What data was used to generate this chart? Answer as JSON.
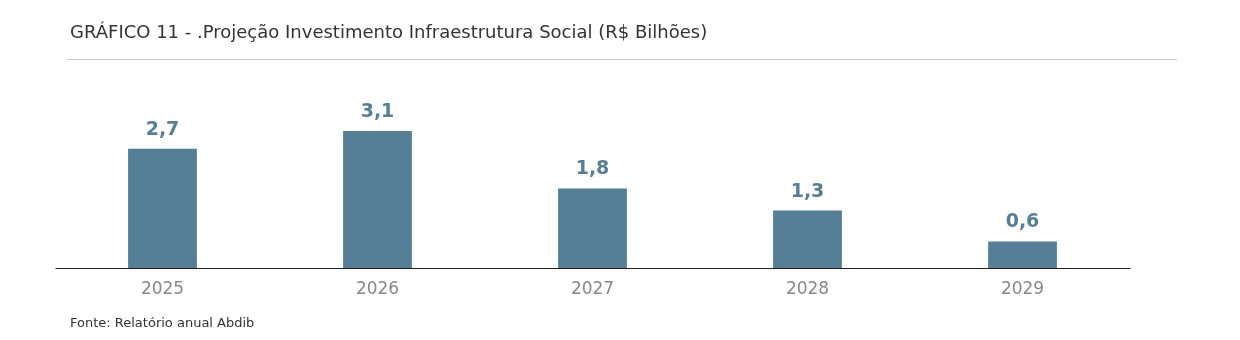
{
  "chart_data": {
    "type": "bar",
    "title": "GRÁFICO 11 - .Projeção Investimento Infraestrutura Social (R$ Bilhões)",
    "categories": [
      "2025",
      "2026",
      "2027",
      "2028",
      "2029"
    ],
    "values": [
      2.7,
      3.1,
      1.8,
      1.3,
      0.6
    ],
    "value_labels": [
      "2,7",
      "3,1",
      "1,8",
      "1,3",
      "0,6"
    ],
    "color": "#557f97",
    "annotations": [
      "Fonte: Relatório anual Abdib"
    ]
  }
}
